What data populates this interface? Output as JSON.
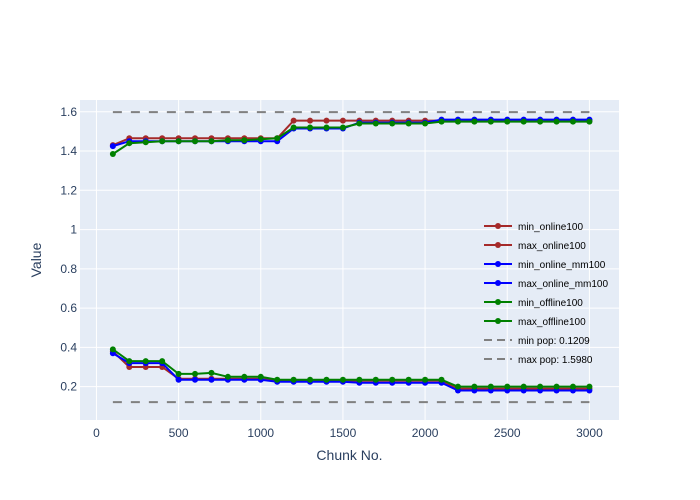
{
  "chart_data": {
    "type": "line",
    "xlabel": "Chunk No.",
    "ylabel": "Value",
    "xlim": [
      -100,
      3180
    ],
    "ylim": [
      0.03,
      1.66
    ],
    "x_ticks": [
      0,
      500,
      1000,
      1500,
      2000,
      2500,
      3000
    ],
    "x_tick_labels": [
      "0",
      "500",
      "1000",
      "1500",
      "2000",
      "2500",
      "3000"
    ],
    "y_ticks": [
      0.2,
      0.4,
      0.6,
      0.8,
      1.0,
      1.2,
      1.4,
      1.6
    ],
    "y_tick_labels": [
      "0.2",
      "0.4",
      "0.6",
      "0.8",
      "1",
      "1.2",
      "1.4",
      "1.6"
    ],
    "grid": true,
    "legend_position": "right",
    "x": [
      100,
      200,
      300,
      400,
      500,
      600,
      700,
      800,
      900,
      1000,
      1100,
      1200,
      1300,
      1400,
      1500,
      1600,
      1700,
      1800,
      1900,
      2000,
      2100,
      2200,
      2300,
      2400,
      2500,
      2600,
      2700,
      2800,
      2900,
      3000
    ],
    "series": [
      {
        "name": "min_online100",
        "color": "#a52a2a",
        "mode": "lines+markers",
        "values": [
          0.38,
          0.3,
          0.3,
          0.3,
          0.24,
          0.24,
          0.24,
          0.24,
          0.24,
          0.24,
          0.23,
          0.23,
          0.23,
          0.23,
          0.23,
          0.23,
          0.23,
          0.23,
          0.23,
          0.23,
          0.23,
          0.19,
          0.19,
          0.19,
          0.19,
          0.19,
          0.19,
          0.19,
          0.19,
          0.19
        ]
      },
      {
        "name": "max_online100",
        "color": "#a52a2a",
        "mode": "lines+markers",
        "values": [
          1.43,
          1.465,
          1.465,
          1.465,
          1.465,
          1.465,
          1.465,
          1.465,
          1.465,
          1.465,
          1.465,
          1.555,
          1.555,
          1.555,
          1.555,
          1.555,
          1.555,
          1.555,
          1.555,
          1.555,
          1.555,
          1.555,
          1.555,
          1.555,
          1.555,
          1.555,
          1.555,
          1.555,
          1.555,
          1.555
        ]
      },
      {
        "name": "min_online_mm100",
        "color": "#0000ff",
        "mode": "lines+markers",
        "values": [
          0.37,
          0.32,
          0.32,
          0.32,
          0.235,
          0.235,
          0.235,
          0.235,
          0.235,
          0.235,
          0.225,
          0.225,
          0.225,
          0.225,
          0.225,
          0.22,
          0.22,
          0.22,
          0.22,
          0.22,
          0.22,
          0.18,
          0.18,
          0.18,
          0.18,
          0.18,
          0.18,
          0.18,
          0.18,
          0.18
        ]
      },
      {
        "name": "max_online_mm100",
        "color": "#0000ff",
        "mode": "lines+markers",
        "values": [
          1.425,
          1.45,
          1.45,
          1.45,
          1.45,
          1.45,
          1.45,
          1.45,
          1.45,
          1.45,
          1.45,
          1.515,
          1.515,
          1.515,
          1.515,
          1.545,
          1.545,
          1.545,
          1.545,
          1.545,
          1.56,
          1.56,
          1.56,
          1.56,
          1.56,
          1.56,
          1.56,
          1.56,
          1.56,
          1.56
        ]
      },
      {
        "name": "min_offline100",
        "color": "#008000",
        "mode": "lines+markers",
        "values": [
          0.39,
          0.33,
          0.33,
          0.33,
          0.265,
          0.265,
          0.27,
          0.25,
          0.25,
          0.25,
          0.235,
          0.235,
          0.235,
          0.235,
          0.235,
          0.235,
          0.235,
          0.235,
          0.235,
          0.235,
          0.235,
          0.2,
          0.2,
          0.2,
          0.2,
          0.2,
          0.2,
          0.2,
          0.2,
          0.2
        ]
      },
      {
        "name": "max_offline100",
        "color": "#008000",
        "mode": "lines+markers",
        "values": [
          1.385,
          1.44,
          1.445,
          1.45,
          1.45,
          1.45,
          1.45,
          1.455,
          1.455,
          1.46,
          1.465,
          1.52,
          1.52,
          1.52,
          1.52,
          1.54,
          1.54,
          1.54,
          1.54,
          1.54,
          1.55,
          1.55,
          1.55,
          1.55,
          1.55,
          1.55,
          1.55,
          1.55,
          1.55,
          1.55
        ]
      },
      {
        "name": "min pop: 0.1209",
        "color": "#808080",
        "mode": "dash",
        "values": [
          0.1209,
          0.1209,
          0.1209,
          0.1209,
          0.1209,
          0.1209,
          0.1209,
          0.1209,
          0.1209,
          0.1209,
          0.1209,
          0.1209,
          0.1209,
          0.1209,
          0.1209,
          0.1209,
          0.1209,
          0.1209,
          0.1209,
          0.1209,
          0.1209,
          0.1209,
          0.1209,
          0.1209,
          0.1209,
          0.1209,
          0.1209,
          0.1209,
          0.1209,
          0.1209
        ]
      },
      {
        "name": "max pop: 1.5980",
        "color": "#808080",
        "mode": "dash",
        "values": [
          1.598,
          1.598,
          1.598,
          1.598,
          1.598,
          1.598,
          1.598,
          1.598,
          1.598,
          1.598,
          1.598,
          1.598,
          1.598,
          1.598,
          1.598,
          1.598,
          1.598,
          1.598,
          1.598,
          1.598,
          1.598,
          1.598,
          1.598,
          1.598,
          1.598,
          1.598,
          1.598,
          1.598,
          1.598,
          1.598
        ]
      }
    ]
  },
  "colors": {
    "plot_background": "#e5ecf6",
    "grid": "#ffffff",
    "text": "#2a3f5f"
  }
}
